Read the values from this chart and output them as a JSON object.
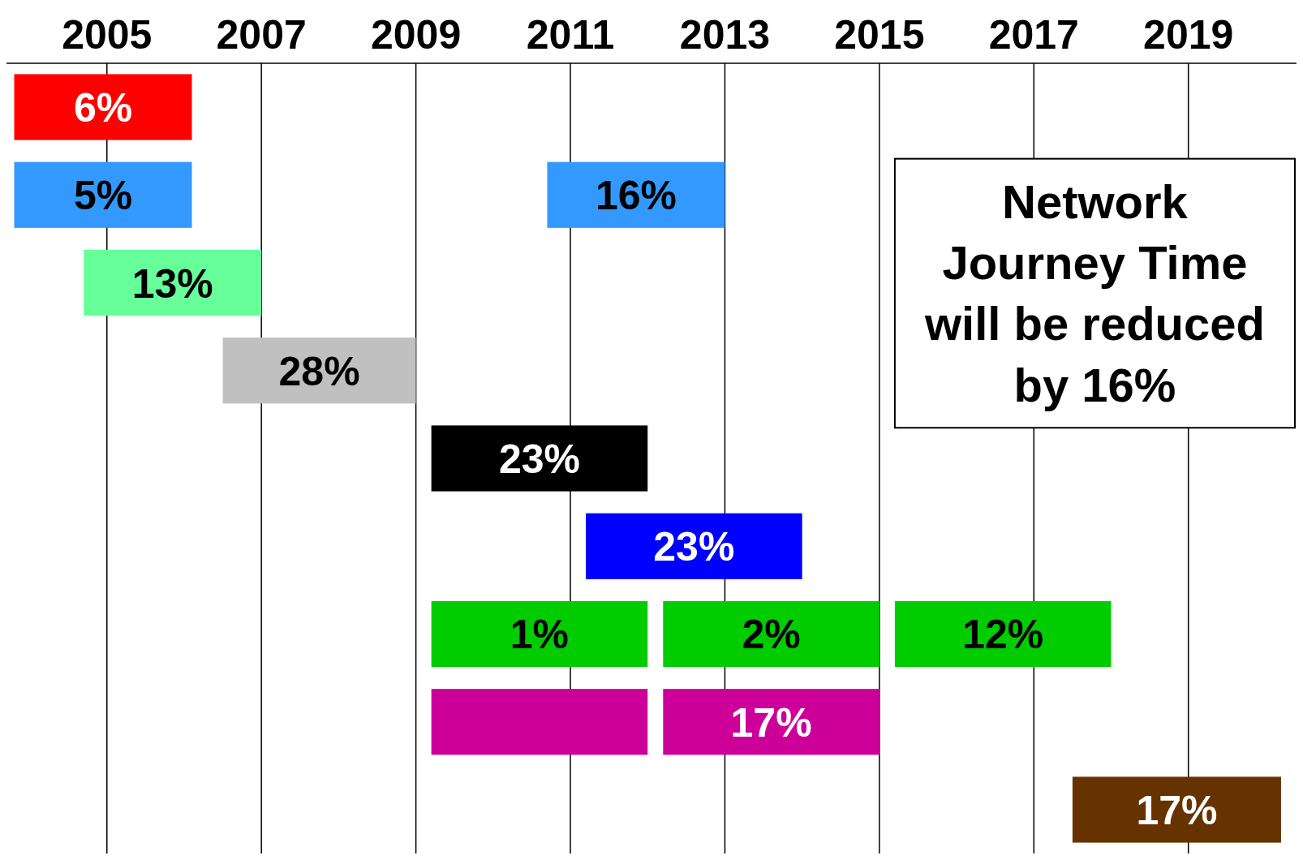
{
  "chart_data": {
    "type": "bar",
    "orientation": "horizontal",
    "categories": [
      null,
      null,
      null,
      null,
      null,
      null,
      null,
      null,
      null
    ],
    "xlim": [
      2003.7,
      2020.4
    ],
    "xticks": [
      2005,
      2007,
      2009,
      2011,
      2013,
      2015,
      2017,
      2019
    ],
    "grid": "x",
    "tick_labels": "x",
    "annotations": [
      "Network Journey Time will be reduced by 16%",
      {
        "text": "6%",
        "x": 2006.1
      },
      {
        "text": "5%",
        "x": 2006.1
      },
      {
        "text": "16%",
        "x": 2013.0
      },
      {
        "text": "13%",
        "x": 2007.0
      },
      {
        "text": "28%",
        "x": 2009.0
      },
      {
        "text": "23%",
        "x": 2012.0
      },
      {
        "text": "23%",
        "x": 2014.0
      },
      {
        "text": "1%",
        "x": 2012.0
      },
      {
        "text": "2%",
        "x": 2015.0
      },
      {
        "text": "12%",
        "x": 2018.0
      },
      {
        "text": "17%",
        "x": 2015.0
      },
      {
        "text": "17%",
        "x": 2020.2
      }
    ],
    "series": [
      {
        "color": "#ff0000",
        "values": [
          2.3,
          null,
          null,
          null,
          null,
          null,
          null,
          null,
          null
        ],
        "base": [
          2003.8,
          null,
          null,
          null,
          null,
          null,
          null,
          null,
          null
        ]
      },
      {
        "color": "#3399ff",
        "values": [
          null,
          2.3,
          null,
          null,
          null,
          null,
          null,
          null,
          null
        ],
        "base": [
          null,
          2003.8,
          null,
          null,
          null,
          null,
          null,
          null,
          null
        ]
      },
      {
        "color": "#3399ff",
        "values": [
          null,
          2.3,
          null,
          null,
          null,
          null,
          null,
          null,
          null
        ],
        "base": [
          null,
          2010.7,
          null,
          null,
          null,
          null,
          null,
          null,
          null
        ]
      },
      {
        "color": "#66ff99",
        "values": [
          null,
          null,
          2.3,
          null,
          null,
          null,
          null,
          null,
          null
        ],
        "base": [
          null,
          null,
          2004.7,
          null,
          null,
          null,
          null,
          null,
          null
        ]
      },
      {
        "color": "#c0c0c0",
        "values": [
          null,
          null,
          null,
          2.5,
          null,
          null,
          null,
          null,
          null
        ],
        "base": [
          null,
          null,
          null,
          2006.5,
          null,
          null,
          null,
          null,
          null
        ]
      },
      {
        "color": "#000000",
        "values": [
          null,
          null,
          null,
          null,
          2.8,
          null,
          null,
          null,
          null
        ],
        "base": [
          null,
          null,
          null,
          null,
          2009.2,
          null,
          null,
          null,
          null
        ]
      },
      {
        "color": "#0000ff",
        "values": [
          null,
          null,
          null,
          null,
          null,
          2.8,
          null,
          null,
          null
        ],
        "base": [
          null,
          null,
          null,
          null,
          null,
          2011.2,
          null,
          null,
          null
        ]
      },
      {
        "color": "#00cc00",
        "values": [
          null,
          null,
          null,
          null,
          null,
          null,
          2.8,
          null,
          null
        ],
        "base": [
          null,
          null,
          null,
          null,
          null,
          null,
          2009.2,
          null,
          null
        ]
      },
      {
        "color": "#00cc00",
        "values": [
          null,
          null,
          null,
          null,
          null,
          null,
          2.8,
          null,
          null
        ],
        "base": [
          null,
          null,
          null,
          null,
          null,
          null,
          2012.2,
          null,
          null
        ]
      },
      {
        "color": "#00cc00",
        "values": [
          null,
          null,
          null,
          null,
          null,
          null,
          2.8,
          null,
          null
        ],
        "base": [
          null,
          null,
          null,
          null,
          null,
          null,
          2015.2,
          null,
          null
        ]
      },
      {
        "color": "#cc0099",
        "values": [
          null,
          null,
          null,
          null,
          null,
          null,
          null,
          2.8,
          null
        ],
        "base": [
          null,
          null,
          null,
          null,
          null,
          null,
          null,
          2009.2,
          null
        ]
      },
      {
        "color": "#cc0099",
        "values": [
          null,
          null,
          null,
          null,
          null,
          null,
          null,
          2.8,
          null
        ],
        "base": [
          null,
          null,
          null,
          null,
          null,
          null,
          null,
          2012.2,
          null
        ]
      },
      {
        "color": "#663300",
        "values": [
          null,
          null,
          null,
          null,
          null,
          null,
          null,
          null,
          2.7
        ],
        "base": [
          null,
          null,
          null,
          null,
          null,
          null,
          null,
          null,
          2017.5
        ]
      }
    ]
  }
}
